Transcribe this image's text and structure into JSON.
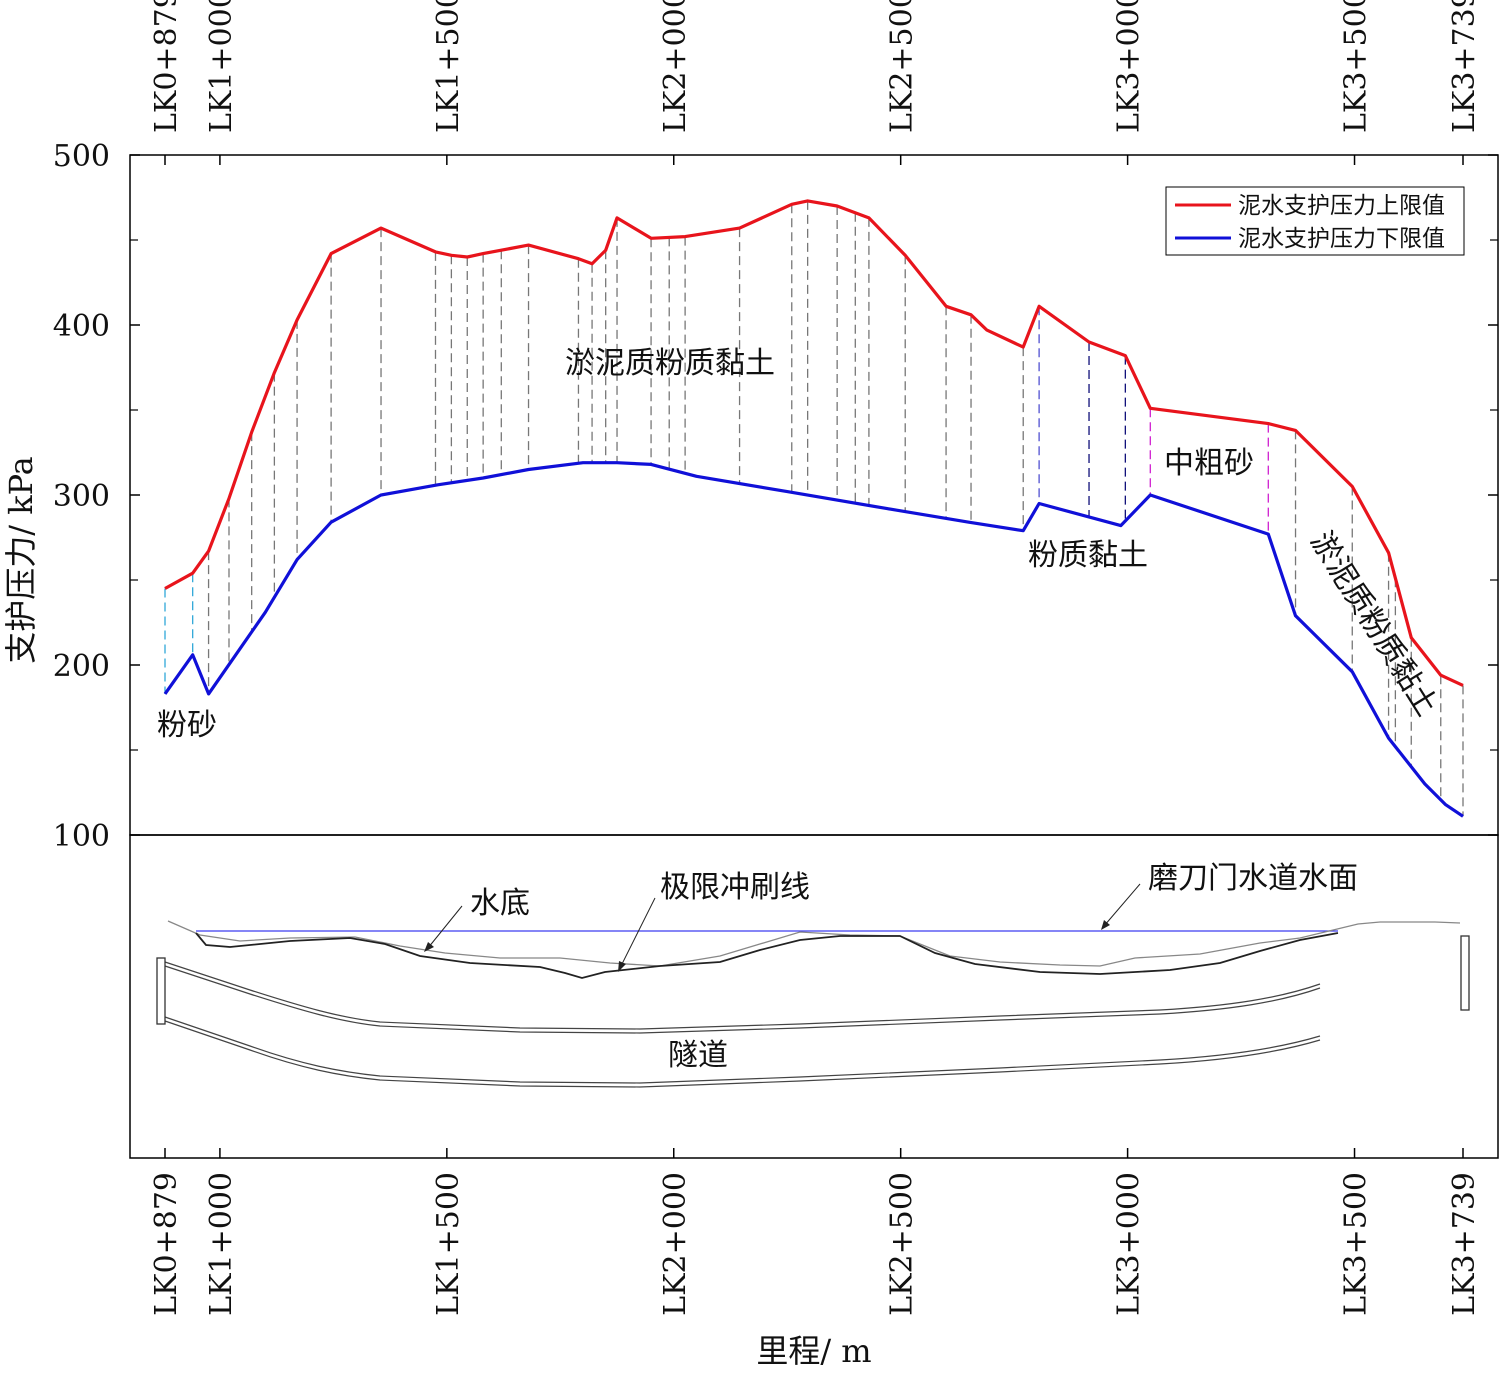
{
  "chart_data": {
    "type": "line",
    "xlabel": "里程/ m",
    "ylabel": "支护压力/ kPa",
    "xlim": [
      879,
      3739
    ],
    "ylim": [
      100,
      500
    ],
    "y_ticks": [
      100,
      200,
      300,
      400,
      500
    ],
    "y_minor_ticks": [
      150,
      250,
      350,
      450
    ],
    "y_tick_labels": [
      "100",
      "200",
      "300",
      "400",
      "500"
    ],
    "x_ticks": [
      879,
      1000,
      1500,
      2000,
      2500,
      3000,
      3500,
      3739
    ],
    "x_tick_labels": [
      "LK0+879",
      "LK1+000",
      "LK1+500",
      "LK2+000",
      "LK2+500",
      "LK3+000",
      "LK3+500",
      "LK3+739"
    ],
    "legend": {
      "position": "top-right"
    },
    "series": [
      {
        "name": "泥水支护压力上限值",
        "color": "#e8141c",
        "x": [
          879,
          940,
          975,
          1020,
          1070,
          1120,
          1170,
          1245,
          1355,
          1475,
          1510,
          1545,
          1580,
          1680,
          1790,
          1820,
          1850,
          1875,
          1950,
          2025,
          2145,
          2260,
          2295,
          2360,
          2430,
          2510,
          2600,
          2655,
          2690,
          2770,
          2805,
          2915,
          2995,
          3050,
          3310,
          3370,
          3495,
          3575,
          3625,
          3690,
          3739
        ],
        "values": [
          245,
          254,
          267,
          298,
          337,
          372,
          403,
          442,
          457,
          443,
          441,
          440,
          442,
          447,
          439,
          436,
          444,
          463,
          451,
          452,
          457,
          471,
          473,
          470,
          463,
          441,
          411,
          406,
          397,
          387,
          411,
          390,
          382,
          351,
          342,
          338,
          305,
          266,
          216,
          194,
          188
        ]
      },
      {
        "name": "泥水支护压力下限值",
        "color": "#1010d8",
        "x": [
          879,
          940,
          975,
          1100,
          1170,
          1245,
          1355,
          1480,
          1580,
          1680,
          1800,
          1875,
          1950,
          2050,
          2250,
          2470,
          2650,
          2770,
          2805,
          2985,
          3050,
          3310,
          3370,
          3495,
          3575,
          3655,
          3700,
          3739
        ],
        "values": [
          183,
          206,
          183,
          231,
          262,
          284,
          300,
          306,
          310,
          315,
          319,
          319,
          318,
          311,
          302,
          292,
          284,
          279,
          295,
          282,
          300,
          277,
          229,
          196,
          157,
          130,
          118,
          111
        ]
      }
    ],
    "annotations": [
      "淤泥质粉质黏土",
      "中粗砂",
      "粉质黏土",
      "淤泥质粉质黏土",
      "粉砂"
    ],
    "profile_labels": [
      "水底",
      "极限冲刷线",
      "磨刀门水道水面",
      "隧道"
    ]
  }
}
